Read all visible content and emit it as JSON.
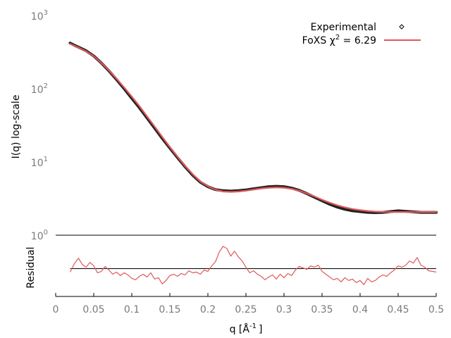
{
  "chart_data": [
    {
      "panel": "main",
      "type": "line",
      "title": "",
      "xlabel": "",
      "ylabel": "I(q) log-scale",
      "yscale": "log",
      "xlim": [
        0,
        0.5
      ],
      "ylim": [
        1,
        1000
      ],
      "y_ticks": [
        {
          "base": "10",
          "exp": "0",
          "value": 1
        },
        {
          "base": "10",
          "exp": "1",
          "value": 10
        },
        {
          "base": "10",
          "exp": "2",
          "value": 100
        },
        {
          "base": "10",
          "exp": "3",
          "value": 1000
        }
      ],
      "grid": false,
      "legend": {
        "placement": "top-right",
        "entries": [
          {
            "label": "Experimental",
            "marker": "diamond",
            "color": "#000000"
          },
          {
            "label": "FoXS χ² = 6.29",
            "label_text": "FoXS χ",
            "label_sup": "2",
            "label_value": " = 6.29",
            "marker": "line",
            "color": "#e0585b"
          }
        ]
      },
      "series": [
        {
          "name": "Experimental",
          "color": "#222222",
          "x": [
            0.019,
            0.025,
            0.03,
            0.04,
            0.05,
            0.06,
            0.07,
            0.08,
            0.09,
            0.1,
            0.11,
            0.12,
            0.13,
            0.14,
            0.15,
            0.16,
            0.17,
            0.18,
            0.19,
            0.2,
            0.21,
            0.22,
            0.23,
            0.24,
            0.25,
            0.26,
            0.27,
            0.28,
            0.29,
            0.3,
            0.31,
            0.32,
            0.33,
            0.34,
            0.35,
            0.36,
            0.37,
            0.38,
            0.39,
            0.4,
            0.41,
            0.42,
            0.43,
            0.44,
            0.45,
            0.46,
            0.47,
            0.48,
            0.49,
            0.5
          ],
          "y": [
            420,
            390,
            370,
            330,
            280,
            225,
            175,
            133,
            100,
            74,
            55,
            40,
            29,
            21,
            15.5,
            11.5,
            8.6,
            6.6,
            5.3,
            4.6,
            4.2,
            4.05,
            4.0,
            4.05,
            4.15,
            4.3,
            4.45,
            4.6,
            4.65,
            4.6,
            4.4,
            4.1,
            3.7,
            3.3,
            2.95,
            2.65,
            2.42,
            2.26,
            2.15,
            2.1,
            2.05,
            2.03,
            2.05,
            2.1,
            2.15,
            2.12,
            2.08,
            2.05,
            2.05,
            2.05
          ]
        },
        {
          "name": "FoXS χ² = 6.29",
          "color": "#e0585b",
          "x": [
            0.019,
            0.025,
            0.03,
            0.04,
            0.05,
            0.06,
            0.07,
            0.08,
            0.09,
            0.1,
            0.11,
            0.12,
            0.13,
            0.14,
            0.15,
            0.16,
            0.17,
            0.18,
            0.19,
            0.2,
            0.21,
            0.22,
            0.23,
            0.24,
            0.25,
            0.26,
            0.27,
            0.28,
            0.29,
            0.3,
            0.31,
            0.32,
            0.33,
            0.34,
            0.35,
            0.36,
            0.37,
            0.38,
            0.39,
            0.4,
            0.41,
            0.42,
            0.43,
            0.44,
            0.45,
            0.46,
            0.47,
            0.48,
            0.49,
            0.5
          ],
          "y": [
            410,
            385,
            365,
            325,
            278,
            226,
            178,
            137,
            104,
            78,
            58,
            42,
            30.5,
            22,
            16,
            11.8,
            8.8,
            6.8,
            5.4,
            4.65,
            4.2,
            3.95,
            3.9,
            3.95,
            4.05,
            4.2,
            4.35,
            4.45,
            4.5,
            4.45,
            4.3,
            4.05,
            3.72,
            3.38,
            3.05,
            2.78,
            2.56,
            2.4,
            2.28,
            2.2,
            2.14,
            2.1,
            2.08,
            2.07,
            2.07,
            2.07,
            2.07,
            2.07,
            2.07,
            2.07
          ]
        }
      ]
    },
    {
      "panel": "residual",
      "type": "line",
      "title": "",
      "xlabel": "q [Å⁻¹]",
      "xlabel_text": "q [Å",
      "xlabel_sup": "-1",
      "xlabel_tail": "]",
      "ylabel": "Residual",
      "xlim": [
        0,
        0.5
      ],
      "ylim": [
        -4,
        4
      ],
      "x_ticks": [
        "0",
        "0.05",
        "0.1",
        "0.15",
        "0.2",
        "0.25",
        "0.3",
        "0.35",
        "0.4",
        "0.45",
        "0.5"
      ],
      "reference_line": 0,
      "grid": false,
      "series": [
        {
          "name": "",
          "color": "#e0585b",
          "x": [
            0.019,
            0.025,
            0.03,
            0.035,
            0.04,
            0.045,
            0.05,
            0.055,
            0.06,
            0.065,
            0.07,
            0.075,
            0.08,
            0.085,
            0.09,
            0.095,
            0.1,
            0.105,
            0.11,
            0.115,
            0.12,
            0.125,
            0.13,
            0.135,
            0.14,
            0.145,
            0.15,
            0.155,
            0.16,
            0.165,
            0.17,
            0.175,
            0.18,
            0.185,
            0.19,
            0.195,
            0.2,
            0.205,
            0.21,
            0.215,
            0.22,
            0.225,
            0.23,
            0.235,
            0.24,
            0.245,
            0.25,
            0.255,
            0.26,
            0.265,
            0.27,
            0.275,
            0.28,
            0.285,
            0.29,
            0.295,
            0.3,
            0.305,
            0.31,
            0.315,
            0.32,
            0.325,
            0.33,
            0.335,
            0.34,
            0.345,
            0.35,
            0.355,
            0.36,
            0.365,
            0.37,
            0.375,
            0.38,
            0.385,
            0.39,
            0.395,
            0.4,
            0.405,
            0.41,
            0.415,
            0.42,
            0.425,
            0.43,
            0.435,
            0.44,
            0.445,
            0.45,
            0.455,
            0.46,
            0.465,
            0.47,
            0.475,
            0.48,
            0.485,
            0.49,
            0.495,
            0.5
          ],
          "y": [
            -0.5,
            0.8,
            1.5,
            0.6,
            0.2,
            0.9,
            0.4,
            -0.6,
            -0.4,
            0.3,
            -0.2,
            -0.8,
            -0.5,
            -1.0,
            -0.6,
            -0.9,
            -1.4,
            -1.6,
            -1.1,
            -0.8,
            -1.2,
            -0.6,
            -1.5,
            -1.3,
            -2.2,
            -1.7,
            -1.0,
            -0.8,
            -1.1,
            -0.7,
            -0.9,
            -0.3,
            -0.6,
            -0.5,
            -0.8,
            -0.2,
            -0.4,
            0.4,
            1.0,
            2.4,
            3.2,
            2.9,
            1.8,
            2.5,
            1.7,
            1.1,
            0.2,
            -0.6,
            -0.3,
            -0.8,
            -1.1,
            -1.6,
            -1.2,
            -0.9,
            -1.5,
            -0.8,
            -1.3,
            -0.7,
            -1.0,
            -0.2,
            0.3,
            0.1,
            -0.1,
            0.4,
            0.2,
            0.5,
            -0.4,
            -0.8,
            -1.2,
            -1.6,
            -1.4,
            -1.9,
            -1.3,
            -1.7,
            -1.5,
            -2.0,
            -1.7,
            -2.3,
            -1.4,
            -1.9,
            -1.7,
            -1.2,
            -0.9,
            -1.1,
            -0.6,
            -0.2,
            0.4,
            0.2,
            0.5,
            1.1,
            0.8,
            1.6,
            0.5,
            0.2,
            -0.3,
            -0.4,
            -0.5
          ]
        }
      ]
    }
  ]
}
